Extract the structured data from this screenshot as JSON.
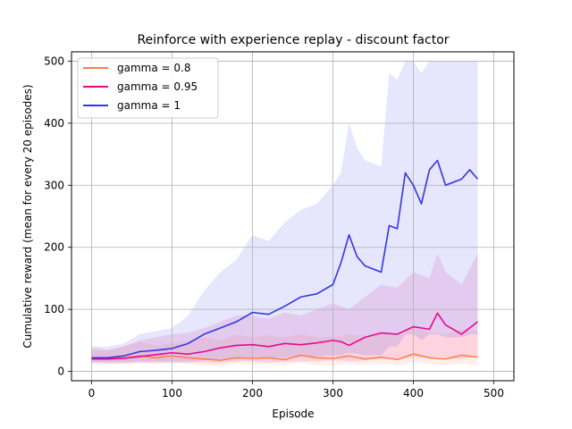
{
  "chart_data": {
    "type": "line",
    "title": "Reinforce with experience replay - discount factor",
    "xlabel": "Episode",
    "ylabel": "Cumulative reward (mean for every 20 episodes)",
    "xlim": [
      -25,
      525
    ],
    "ylim": [
      -15,
      515
    ],
    "xticks": [
      0,
      100,
      200,
      300,
      400,
      500
    ],
    "yticks": [
      0,
      100,
      200,
      300,
      400,
      500
    ],
    "grid": true,
    "legend_position": "top-left",
    "series": [
      {
        "name": "gamma = 0.8",
        "color": "#ff7f50",
        "x": [
          0,
          20,
          40,
          60,
          80,
          100,
          120,
          140,
          160,
          180,
          200,
          220,
          240,
          260,
          280,
          300,
          320,
          340,
          360,
          380,
          400,
          420,
          440,
          460,
          480
        ],
        "values": [
          22,
          21,
          22,
          25,
          22,
          25,
          22,
          20,
          18,
          22,
          21,
          22,
          19,
          26,
          22,
          21,
          25,
          20,
          23,
          19,
          28,
          22,
          20,
          26,
          23
        ],
        "raw_band": [
          [
            15,
            40
          ],
          [
            12,
            35
          ],
          [
            14,
            40
          ],
          [
            14,
            48
          ],
          [
            12,
            42
          ],
          [
            14,
            45
          ],
          [
            12,
            50
          ],
          [
            10,
            55
          ],
          [
            8,
            50
          ],
          [
            12,
            60
          ],
          [
            10,
            55
          ],
          [
            12,
            58
          ],
          [
            10,
            55
          ],
          [
            14,
            60
          ],
          [
            10,
            56
          ],
          [
            10,
            55
          ],
          [
            12,
            60
          ],
          [
            10,
            58
          ],
          [
            12,
            62
          ],
          [
            10,
            58
          ],
          [
            14,
            70
          ],
          [
            12,
            64
          ],
          [
            10,
            60
          ],
          [
            12,
            68
          ],
          [
            10,
            65
          ]
        ]
      },
      {
        "name": "gamma = 0.95",
        "color": "#e6088f",
        "x": [
          0,
          20,
          40,
          60,
          80,
          100,
          120,
          140,
          160,
          180,
          200,
          220,
          240,
          260,
          280,
          300,
          310,
          320,
          340,
          360,
          380,
          400,
          420,
          430,
          440,
          460,
          480
        ],
        "values": [
          20,
          20,
          21,
          24,
          27,
          30,
          28,
          32,
          38,
          42,
          43,
          40,
          45,
          43,
          46,
          50,
          48,
          42,
          55,
          62,
          60,
          72,
          68,
          94,
          75,
          60,
          80
        ],
        "raw_band": [
          [
            12,
            35
          ],
          [
            12,
            34
          ],
          [
            12,
            40
          ],
          [
            14,
            50
          ],
          [
            14,
            55
          ],
          [
            14,
            60
          ],
          [
            14,
            62
          ],
          [
            14,
            70
          ],
          [
            14,
            80
          ],
          [
            16,
            90
          ],
          [
            16,
            90
          ],
          [
            14,
            85
          ],
          [
            16,
            95
          ],
          [
            16,
            90
          ],
          [
            16,
            100
          ],
          [
            18,
            110
          ],
          [
            18,
            105
          ],
          [
            16,
            100
          ],
          [
            18,
            120
          ],
          [
            20,
            140
          ],
          [
            20,
            135
          ],
          [
            22,
            160
          ],
          [
            22,
            150
          ],
          [
            24,
            190
          ],
          [
            22,
            160
          ],
          [
            20,
            140
          ],
          [
            24,
            190
          ]
        ]
      },
      {
        "name": "gamma = 1",
        "color": "#3535e6",
        "x": [
          0,
          20,
          40,
          60,
          80,
          100,
          120,
          140,
          160,
          180,
          200,
          220,
          240,
          260,
          280,
          300,
          310,
          320,
          330,
          340,
          360,
          370,
          380,
          390,
          400,
          410,
          420,
          430,
          440,
          460,
          470,
          480
        ],
        "values": [
          22,
          22,
          25,
          32,
          34,
          37,
          45,
          60,
          70,
          80,
          95,
          92,
          105,
          120,
          125,
          140,
          175,
          220,
          185,
          170,
          160,
          235,
          230,
          320,
          300,
          270,
          325,
          340,
          300,
          310,
          325,
          310
        ],
        "raw_band": [
          [
            15,
            40
          ],
          [
            15,
            40
          ],
          [
            15,
            45
          ],
          [
            16,
            60
          ],
          [
            16,
            65
          ],
          [
            16,
            70
          ],
          [
            16,
            90
          ],
          [
            18,
            130
          ],
          [
            20,
            160
          ],
          [
            20,
            180
          ],
          [
            22,
            220
          ],
          [
            22,
            210
          ],
          [
            22,
            240
          ],
          [
            24,
            260
          ],
          [
            24,
            270
          ],
          [
            26,
            300
          ],
          [
            26,
            320
          ],
          [
            30,
            400
          ],
          [
            28,
            360
          ],
          [
            26,
            340
          ],
          [
            26,
            330
          ],
          [
            40,
            480
          ],
          [
            40,
            470
          ],
          [
            60,
            500
          ],
          [
            60,
            500
          ],
          [
            50,
            480
          ],
          [
            60,
            500
          ],
          [
            60,
            500
          ],
          [
            55,
            500
          ],
          [
            55,
            500
          ],
          [
            60,
            500
          ],
          [
            60,
            500
          ]
        ]
      }
    ]
  }
}
